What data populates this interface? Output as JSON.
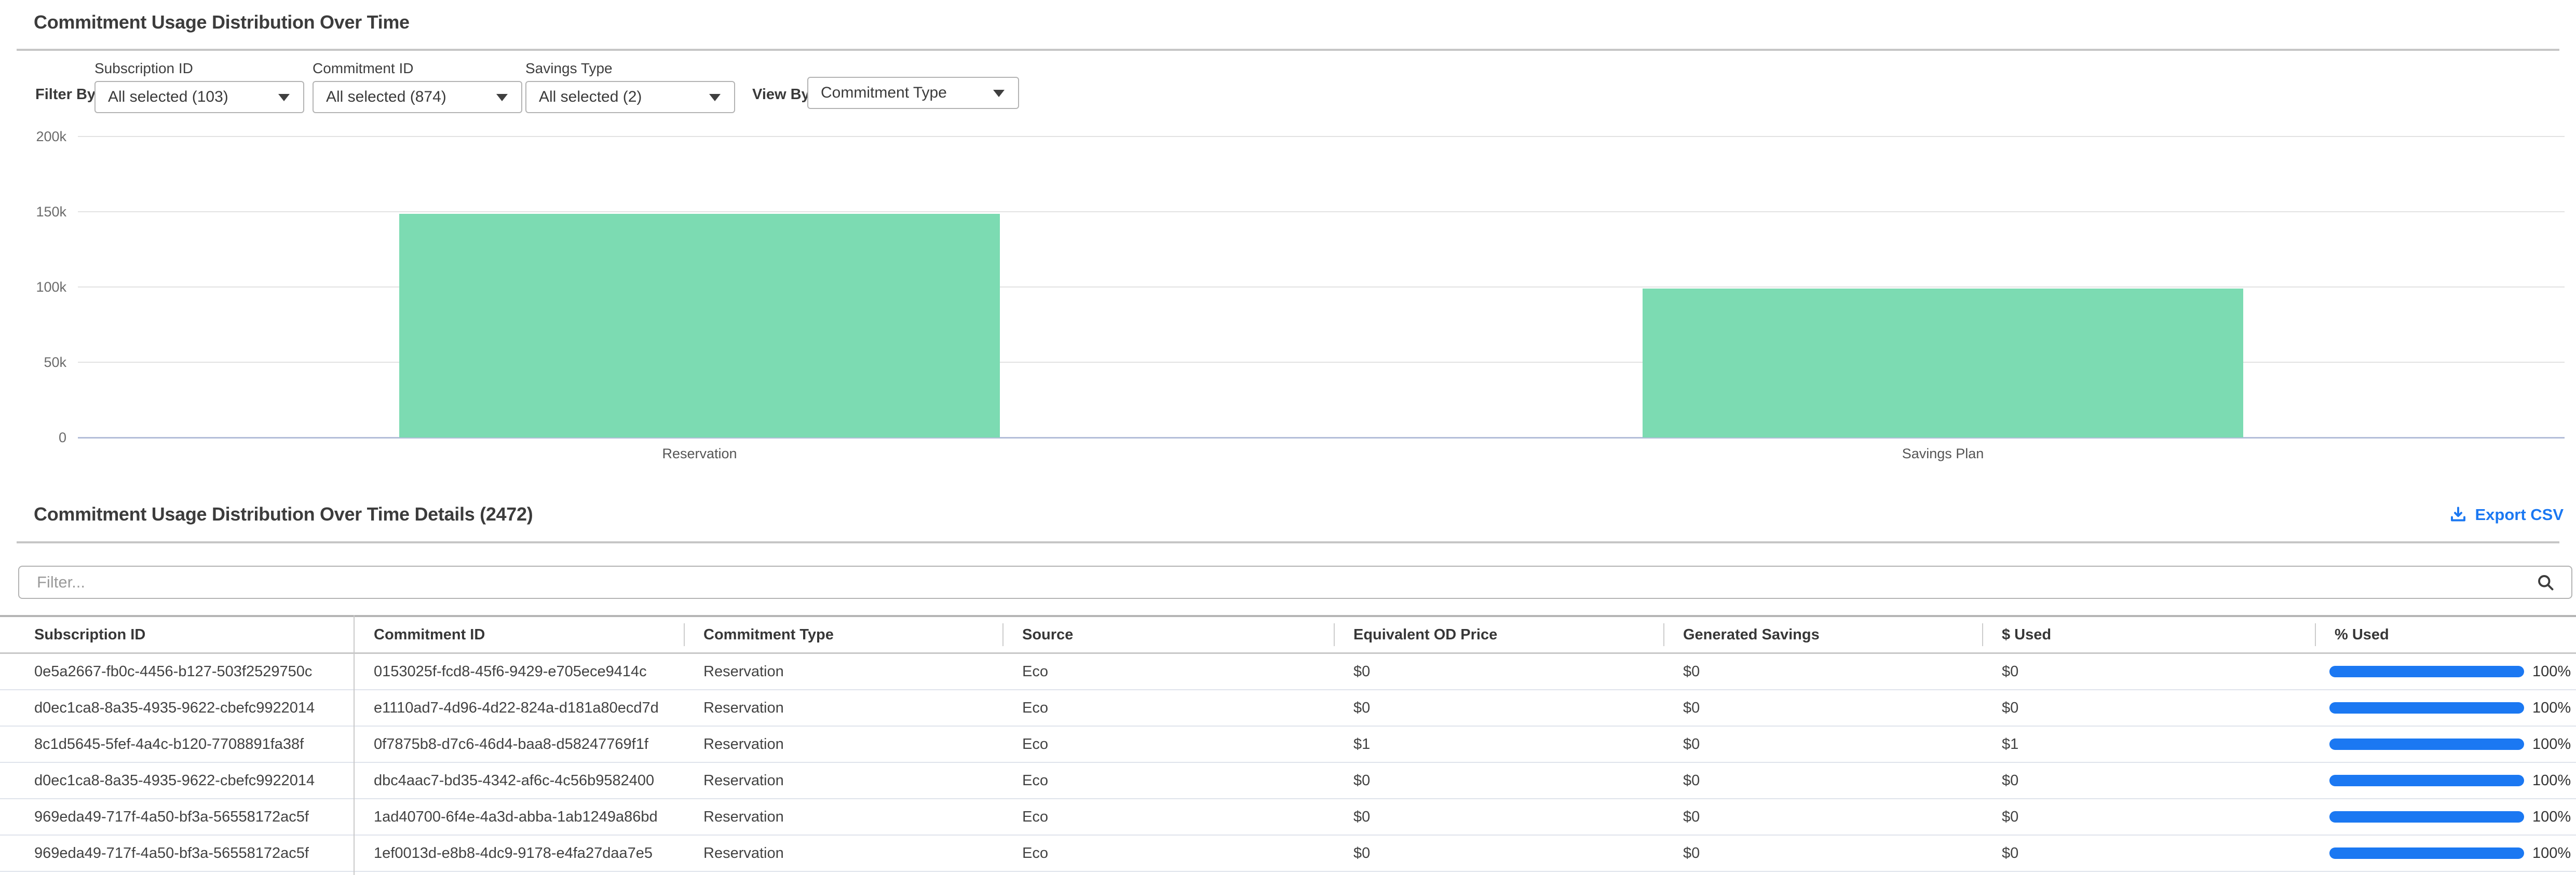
{
  "chart_section": {
    "title": "Commitment Usage Distribution Over Time",
    "filter_by_label": "Filter By:",
    "view_by_label": "View By:",
    "filters": [
      {
        "label": "Subscription ID",
        "value": "All selected (103)"
      },
      {
        "label": "Commitment ID",
        "value": "All selected (874)"
      },
      {
        "label": "Savings Type",
        "value": "All selected (2)"
      }
    ],
    "view_by_value": "Commitment Type"
  },
  "chart_data": {
    "type": "bar",
    "categories": [
      "Reservation",
      "Savings Plan"
    ],
    "values": [
      148500,
      99000
    ],
    "title": "",
    "xlabel": "",
    "ylabel": "",
    "ylim": [
      0,
      200000
    ],
    "yticks": [
      0,
      50000,
      100000,
      150000,
      200000
    ],
    "ytick_labels": [
      "0",
      "50k",
      "100k",
      "150k",
      "200k"
    ],
    "grid": true,
    "legend": false,
    "bar_color": "#7cdbb2"
  },
  "details_section": {
    "title": "Commitment Usage Distribution Over Time Details (2472)",
    "export_label": "Export CSV",
    "filter_placeholder": "Filter...",
    "table": {
      "columns": [
        "Subscription ID",
        "Commitment ID",
        "Commitment Type",
        "Source",
        "Equivalent OD Price",
        "Generated Savings",
        "$ Used",
        "% Used"
      ],
      "rows": [
        {
          "subscription_id": "0e5a2667-fb0c-4456-b127-503f2529750c",
          "commitment_id": "0153025f-fcd8-45f6-9429-e705ece9414c",
          "commitment_type": "Reservation",
          "source": "Eco",
          "equivalent_od_price": "$0",
          "generated_savings": "$0",
          "used_dollars": "$0",
          "used_percent": "100%",
          "used_percent_value": 100
        },
        {
          "subscription_id": "d0ec1ca8-8a35-4935-9622-cbefc9922014",
          "commitment_id": "e1110ad7-4d96-4d22-824a-d181a80ecd7d",
          "commitment_type": "Reservation",
          "source": "Eco",
          "equivalent_od_price": "$0",
          "generated_savings": "$0",
          "used_dollars": "$0",
          "used_percent": "100%",
          "used_percent_value": 100
        },
        {
          "subscription_id": "8c1d5645-5fef-4a4c-b120-7708891fa38f",
          "commitment_id": "0f7875b8-d7c6-46d4-baa8-d58247769f1f",
          "commitment_type": "Reservation",
          "source": "Eco",
          "equivalent_od_price": "$1",
          "generated_savings": "$0",
          "used_dollars": "$1",
          "used_percent": "100%",
          "used_percent_value": 100
        },
        {
          "subscription_id": "d0ec1ca8-8a35-4935-9622-cbefc9922014",
          "commitment_id": "dbc4aac7-bd35-4342-af6c-4c56b9582400",
          "commitment_type": "Reservation",
          "source": "Eco",
          "equivalent_od_price": "$0",
          "generated_savings": "$0",
          "used_dollars": "$0",
          "used_percent": "100%",
          "used_percent_value": 100
        },
        {
          "subscription_id": "969eda49-717f-4a50-bf3a-56558172ac5f",
          "commitment_id": "1ad40700-6f4e-4a3d-abba-1ab1249a86bd",
          "commitment_type": "Reservation",
          "source": "Eco",
          "equivalent_od_price": "$0",
          "generated_savings": "$0",
          "used_dollars": "$0",
          "used_percent": "100%",
          "used_percent_value": 100
        },
        {
          "subscription_id": "969eda49-717f-4a50-bf3a-56558172ac5f",
          "commitment_id": "1ef0013d-e8b8-4dc9-9178-e4fa27daa7e5",
          "commitment_type": "Reservation",
          "source": "Eco",
          "equivalent_od_price": "$0",
          "generated_savings": "$0",
          "used_dollars": "$0",
          "used_percent": "100%",
          "used_percent_value": 100
        }
      ]
    }
  },
  "colors": {
    "accent_blue": "#1b78f2",
    "bar_green": "#7cdbb2"
  }
}
